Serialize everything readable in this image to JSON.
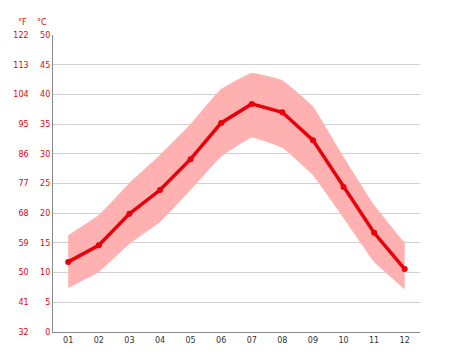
{
  "chart_data": {
    "type": "line",
    "categories": [
      "01",
      "02",
      "03",
      "04",
      "05",
      "06",
      "07",
      "08",
      "09",
      "10",
      "11",
      "12"
    ],
    "series": [
      {
        "values": [
          11.8,
          14.6,
          19.9,
          23.9,
          29.1,
          35.2,
          38.4,
          37.0,
          32.3,
          24.4,
          16.7,
          10.6
        ],
        "color": "#e8000b",
        "marker": "circle",
        "line_style": "solid"
      }
    ],
    "band": {
      "low": [
        7.4,
        10.1,
        14.8,
        18.5,
        23.9,
        29.5,
        32.7,
        31.0,
        26.4,
        19.2,
        11.8,
        7.2
      ],
      "high": [
        16.3,
        19.7,
        25.1,
        29.8,
        35.0,
        40.9,
        43.6,
        42.4,
        38.0,
        29.5,
        21.4,
        15.0
      ],
      "color": "#ffb0b0"
    },
    "ylabel": "°C",
    "ylim": [
      0,
      50
    ],
    "yticks": [
      0,
      5,
      10,
      15,
      20,
      25,
      30,
      35,
      40,
      45,
      50
    ],
    "y2label": "°F",
    "y2lim": [
      32,
      122
    ],
    "y2ticks": [
      32,
      41,
      50,
      59,
      68,
      77,
      86,
      95,
      104,
      113,
      122
    ],
    "grid": true
  }
}
